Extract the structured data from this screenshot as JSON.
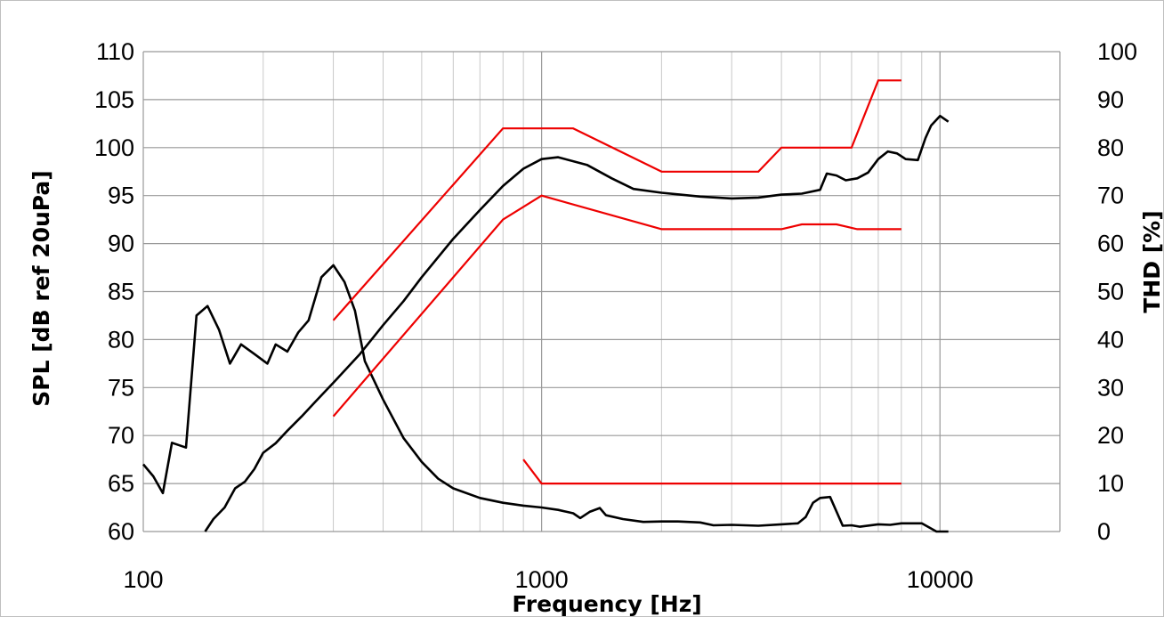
{
  "chart_data": {
    "type": "line",
    "xlabel": "Frequency [Hz]",
    "ylabel": "SPL [dB ref 20uPa]",
    "y2label": "THD [%]",
    "xscale": "log",
    "xlim": [
      100,
      20000
    ],
    "ylim": [
      60,
      110
    ],
    "y2lim": [
      0,
      100
    ],
    "grid": true,
    "x_ticks": [
      100,
      1000,
      10000
    ],
    "x_tick_labels": [
      "100",
      "1000",
      "10000"
    ],
    "y_ticks": [
      60,
      65,
      70,
      75,
      80,
      85,
      90,
      95,
      100,
      105,
      110
    ],
    "y_tick_labels": [
      "60",
      "65",
      "70",
      "75",
      "80",
      "85",
      "90",
      "95",
      "100",
      "105",
      "110"
    ],
    "y2_ticks": [
      0,
      10,
      20,
      30,
      40,
      50,
      60,
      70,
      80,
      90,
      100
    ],
    "y2_tick_labels": [
      "0",
      "10",
      "20",
      "30",
      "40",
      "50",
      "60",
      "70",
      "80",
      "90",
      "100"
    ],
    "colors": {
      "response": "#000000",
      "limits": "#ee0000"
    },
    "series": [
      {
        "axis": "y",
        "color": "#000000",
        "points": [
          [
            143,
            60
          ],
          [
            150,
            61.3
          ],
          [
            160,
            62.5
          ],
          [
            170,
            64.5
          ],
          [
            180,
            65.2
          ],
          [
            190,
            66.5
          ],
          [
            200,
            68.2
          ],
          [
            215,
            69.2
          ],
          [
            230,
            70.5
          ],
          [
            250,
            72
          ],
          [
            270,
            73.5
          ],
          [
            300,
            75.5
          ],
          [
            350,
            78.5
          ],
          [
            400,
            81.5
          ],
          [
            450,
            84
          ],
          [
            500,
            86.5
          ],
          [
            600,
            90.5
          ],
          [
            700,
            93.5
          ],
          [
            800,
            96
          ],
          [
            900,
            97.8
          ],
          [
            1000,
            98.8
          ],
          [
            1100,
            99
          ],
          [
            1300,
            98.2
          ],
          [
            1500,
            96.8
          ],
          [
            1700,
            95.7
          ],
          [
            2000,
            95.3
          ],
          [
            2500,
            94.9
          ],
          [
            3000,
            94.7
          ],
          [
            3500,
            94.8
          ],
          [
            4000,
            95.1
          ],
          [
            4500,
            95.2
          ],
          [
            5000,
            95.6
          ],
          [
            5200,
            97.3
          ],
          [
            5500,
            97.1
          ],
          [
            5800,
            96.6
          ],
          [
            6200,
            96.8
          ],
          [
            6600,
            97.4
          ],
          [
            7000,
            98.8
          ],
          [
            7400,
            99.6
          ],
          [
            7800,
            99.4
          ],
          [
            8200,
            98.8
          ],
          [
            8800,
            98.7
          ],
          [
            9200,
            101
          ],
          [
            9500,
            102.3
          ],
          [
            10000,
            103.3
          ],
          [
            10500,
            102.7
          ]
        ]
      },
      {
        "axis": "y2",
        "color": "#000000",
        "points": [
          [
            100,
            14
          ],
          [
            106,
            11.5
          ],
          [
            112,
            8
          ],
          [
            118,
            18.5
          ],
          [
            128,
            17.5
          ],
          [
            136,
            45
          ],
          [
            145,
            47
          ],
          [
            155,
            42
          ],
          [
            165,
            35
          ],
          [
            176,
            39
          ],
          [
            190,
            37
          ],
          [
            205,
            35
          ],
          [
            215,
            39
          ],
          [
            230,
            37.5
          ],
          [
            245,
            41.5
          ],
          [
            260,
            44
          ],
          [
            280,
            53
          ],
          [
            300,
            55.5
          ],
          [
            320,
            52
          ],
          [
            340,
            46
          ],
          [
            360,
            35.5
          ],
          [
            400,
            27.5
          ],
          [
            450,
            19.5
          ],
          [
            500,
            14.5
          ],
          [
            550,
            11
          ],
          [
            600,
            9
          ],
          [
            700,
            7
          ],
          [
            800,
            6
          ],
          [
            900,
            5.4
          ],
          [
            1000,
            5
          ],
          [
            1100,
            4.5
          ],
          [
            1200,
            3.8
          ],
          [
            1250,
            2.8
          ],
          [
            1320,
            4.1
          ],
          [
            1400,
            4.9
          ],
          [
            1450,
            3.4
          ],
          [
            1600,
            2.6
          ],
          [
            1800,
            2
          ],
          [
            2000,
            2.1
          ],
          [
            2200,
            2.1
          ],
          [
            2500,
            1.9
          ],
          [
            2700,
            1.3
          ],
          [
            3000,
            1.4
          ],
          [
            3500,
            1.2
          ],
          [
            4000,
            1.5
          ],
          [
            4400,
            1.7
          ],
          [
            4600,
            3
          ],
          [
            4800,
            6
          ],
          [
            5000,
            7
          ],
          [
            5300,
            7.2
          ],
          [
            5700,
            1.2
          ],
          [
            6000,
            1.3
          ],
          [
            6300,
            1
          ],
          [
            7000,
            1.5
          ],
          [
            7500,
            1.4
          ],
          [
            8000,
            1.7
          ],
          [
            9000,
            1.7
          ],
          [
            9800,
            0
          ],
          [
            10500,
            0
          ]
        ]
      },
      {
        "axis": "y",
        "color": "#ee0000",
        "points": [
          [
            300,
            82
          ],
          [
            800,
            102
          ],
          [
            1200,
            102
          ],
          [
            2000,
            97.5
          ],
          [
            3500,
            97.5
          ],
          [
            4000,
            100
          ],
          [
            6000,
            100
          ],
          [
            7000,
            107
          ],
          [
            8000,
            107
          ]
        ]
      },
      {
        "axis": "y",
        "color": "#ee0000",
        "points": [
          [
            300,
            72
          ],
          [
            800,
            92.5
          ],
          [
            1000,
            95
          ],
          [
            2000,
            91.5
          ],
          [
            4000,
            91.5
          ],
          [
            4500,
            92
          ],
          [
            5500,
            92
          ],
          [
            6200,
            91.5
          ],
          [
            8000,
            91.5
          ]
        ]
      },
      {
        "axis": "y2",
        "color": "#ee0000",
        "points": [
          [
            900,
            15
          ],
          [
            1000,
            10
          ],
          [
            8000,
            10
          ]
        ]
      }
    ]
  }
}
